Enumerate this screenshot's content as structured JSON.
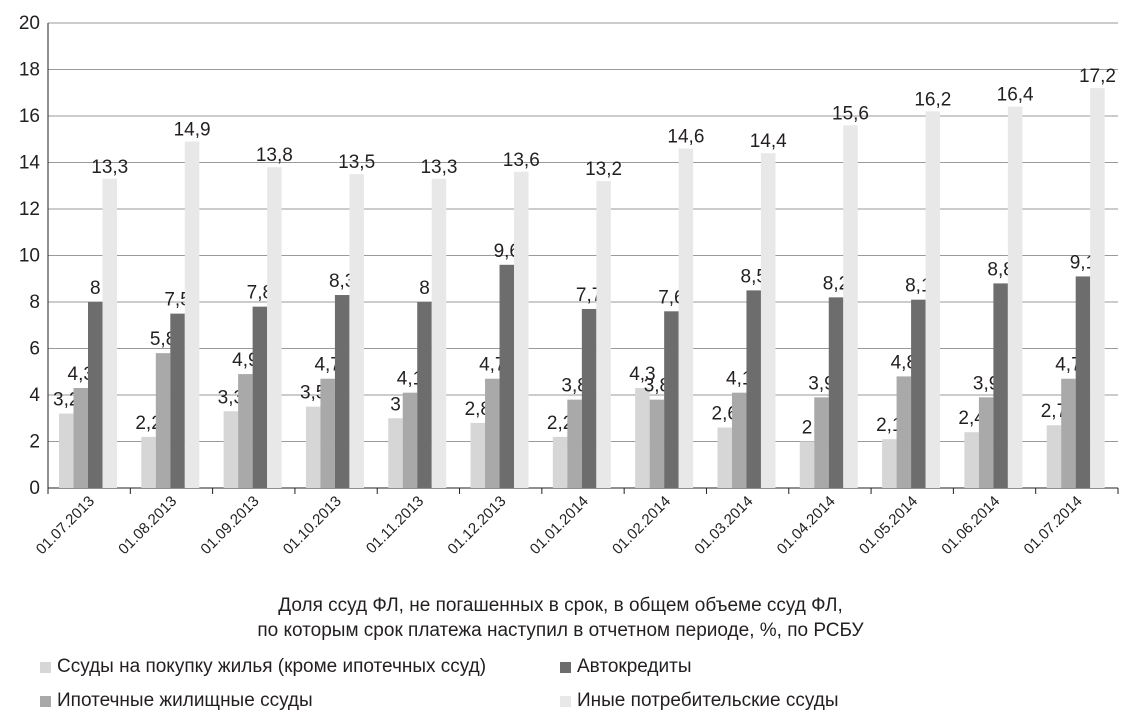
{
  "chart_data": {
    "type": "bar",
    "categories": [
      "01.07.2013",
      "01.08.2013",
      "01.09.2013",
      "01.10.2013",
      "01.11.2013",
      "01.12.2013",
      "01.01.2014",
      "01.02.2014",
      "01.03.2014",
      "01.04.2014",
      "01.05.2014",
      "01.06.2014",
      "01.07.2014"
    ],
    "series": [
      {
        "name": "Ссуды на покупку жилья (кроме ипотечных ссуд)",
        "color": "#d6d6d6",
        "values": [
          3.2,
          2.2,
          3.3,
          3.5,
          3,
          2.8,
          2.2,
          4.3,
          2.6,
          2,
          2.1,
          2.4,
          2.7
        ],
        "labels": [
          "3,2",
          "2,2",
          "3,3",
          "3,5",
          "3",
          "2,8",
          "2,2",
          "4,3",
          "2,6",
          "2",
          "2,1",
          "2,4",
          "2,7"
        ]
      },
      {
        "name": "Ипотечные жилищные ссуды",
        "color": "#a9a9a9",
        "values": [
          4.3,
          5.8,
          4.9,
          4.7,
          4.1,
          4.7,
          3.8,
          3.8,
          4.1,
          3.9,
          4.8,
          3.9,
          4.7
        ],
        "labels": [
          "4,3",
          "5,8",
          "4,9",
          "4,7",
          "4,1",
          "4,7",
          "3,8",
          "3,8",
          "4,1",
          "3,9",
          "4,8",
          "3,9",
          "4,7"
        ]
      },
      {
        "name": "Автокредиты",
        "color": "#6d6d6d",
        "values": [
          8,
          7.5,
          7.8,
          8.3,
          8,
          9.6,
          7.7,
          7.6,
          8.5,
          8.2,
          8.1,
          8.8,
          9.1
        ],
        "labels": [
          "8",
          "7,5",
          "7,8",
          "8,3",
          "8",
          "9,6",
          "7,7",
          "7,6",
          "8,5",
          "8,2",
          "8,1",
          "8,8",
          "9,1"
        ]
      },
      {
        "name": "Иные потребительские ссуды",
        "color": "#e8e8e8",
        "values": [
          13.3,
          14.9,
          13.8,
          13.5,
          13.3,
          13.6,
          13.2,
          14.6,
          14.4,
          15.6,
          16.2,
          16.4,
          17.2
        ],
        "labels": [
          "13,3",
          "14,9",
          "13,8",
          "13,5",
          "13,3",
          "13,6",
          "13,2",
          "14,6",
          "14,4",
          "15,6",
          "16,2",
          "16,4",
          "17,2"
        ]
      }
    ],
    "ylim": [
      0,
      20
    ],
    "yticks": [
      "0",
      "2",
      "4",
      "6",
      "8",
      "10",
      "12",
      "14",
      "16",
      "18",
      "20"
    ],
    "grid": true,
    "legend_placement": "bottom"
  },
  "caption": {
    "line1": "Доля ссуд ФЛ, не погашенных в срок, в общем объеме ссуд ФЛ,",
    "line2": "по которым срок платежа наступил в отчетном периоде, %, по РСБУ"
  }
}
